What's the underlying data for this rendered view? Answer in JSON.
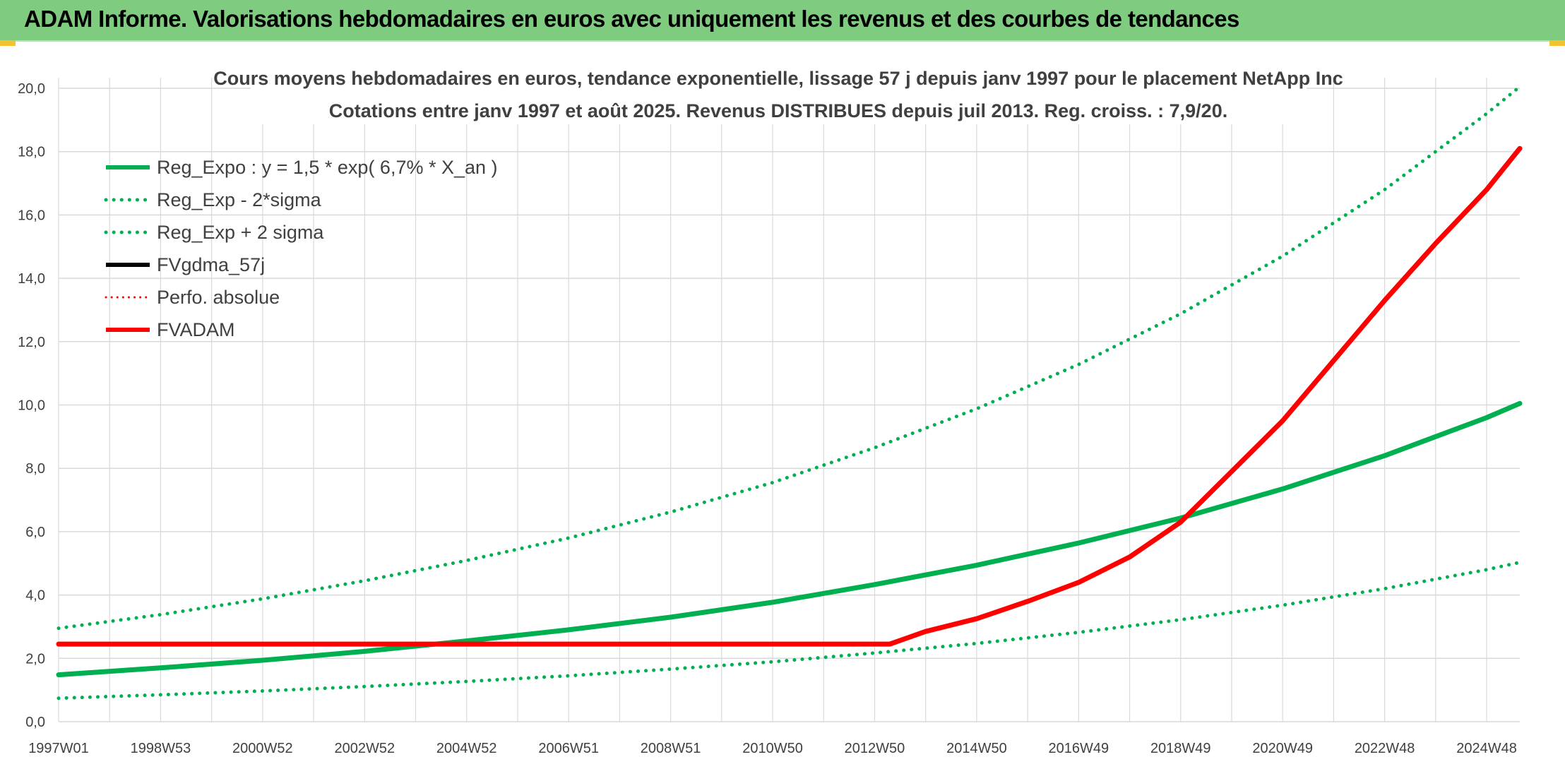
{
  "header": {
    "title": "ADAM Informe. Valorisations hebdomadaires en euros avec uniquement les revenus et des courbes de tendances"
  },
  "colors": {
    "header_bg": "#7fcb7f",
    "green": "#00b050",
    "red": "#ff0000",
    "black": "#000000",
    "grid": "#d9d9d9",
    "text": "#404040"
  },
  "chart_data": {
    "type": "line",
    "title_lines": [
      "Cours moyens hebdomadaires en euros, tendance exponentielle, lissage 57 j depuis janv 1997 pour le placement NetApp Inc",
      "Cotations entre janv 1997 et août 2025. Revenus DISTRIBUES depuis juil 2013. Reg. croiss. : 7,9/20."
    ],
    "xlabel": "",
    "ylabel": "",
    "ylim": [
      0,
      20
    ],
    "x_range_years": [
      1997.0,
      2025.65
    ],
    "y_ticks": [
      "0,0",
      "2,0",
      "4,0",
      "6,0",
      "8,0",
      "10,0",
      "12,0",
      "14,0",
      "16,0",
      "18,0",
      "20,0"
    ],
    "x_ticks": [
      {
        "label": "1997W01",
        "year": 1997.0
      },
      {
        "label": "1998W53",
        "year": 1999.0
      },
      {
        "label": "2000W52",
        "year": 2001.0
      },
      {
        "label": "2002W52",
        "year": 2003.0
      },
      {
        "label": "2004W52",
        "year": 2005.0
      },
      {
        "label": "2006W51",
        "year": 2007.0
      },
      {
        "label": "2008W51",
        "year": 2009.0
      },
      {
        "label": "2010W50",
        "year": 2011.0
      },
      {
        "label": "2012W50",
        "year": 2013.0
      },
      {
        "label": "2014W50",
        "year": 2015.0
      },
      {
        "label": "2016W49",
        "year": 2017.0
      },
      {
        "label": "2018W49",
        "year": 2019.0
      },
      {
        "label": "2020W49",
        "year": 2021.0
      },
      {
        "label": "2022W48",
        "year": 2023.0
      },
      {
        "label": "2024W48",
        "year": 2025.0
      }
    ],
    "grid": true,
    "legend_position": "top-left",
    "series": [
      {
        "name": "Reg_Expo : y = 1,5 * exp( 6,7% *  X_an )",
        "color": "#00b050",
        "style": "solid",
        "x": [
          1997.0,
          1999.0,
          2001.0,
          2003.0,
          2005.0,
          2007.0,
          2009.0,
          2011.0,
          2013.0,
          2015.0,
          2017.0,
          2019.0,
          2021.0,
          2023.0,
          2025.0,
          2025.65
        ],
        "y": [
          1.48,
          1.7,
          1.94,
          2.22,
          2.55,
          2.9,
          3.3,
          3.77,
          4.33,
          4.94,
          5.64,
          6.43,
          7.35,
          8.4,
          9.6,
          10.05
        ]
      },
      {
        "name": "Reg_Exp - 2*sigma",
        "color": "#00b050",
        "style": "dotted",
        "x": [
          1997.0,
          1999.0,
          2001.0,
          2003.0,
          2005.0,
          2007.0,
          2009.0,
          2011.0,
          2013.0,
          2015.0,
          2017.0,
          2019.0,
          2021.0,
          2023.0,
          2025.0,
          2025.65
        ],
        "y": [
          0.74,
          0.85,
          0.97,
          1.11,
          1.27,
          1.45,
          1.66,
          1.89,
          2.17,
          2.47,
          2.82,
          3.22,
          3.68,
          4.2,
          4.8,
          5.03
        ]
      },
      {
        "name": "Reg_Exp + 2 sigma",
        "color": "#00b050",
        "style": "dotted",
        "x": [
          1997.0,
          1999.0,
          2001.0,
          2003.0,
          2005.0,
          2007.0,
          2009.0,
          2011.0,
          2013.0,
          2015.0,
          2017.0,
          2019.0,
          2021.0,
          2023.0,
          2025.0,
          2025.65
        ],
        "y": [
          2.95,
          3.38,
          3.88,
          4.45,
          5.09,
          5.8,
          6.62,
          7.55,
          8.65,
          9.88,
          11.28,
          12.88,
          14.7,
          16.8,
          19.2,
          20.05
        ]
      },
      {
        "name": "FVgdma_57j",
        "color": "#000000",
        "style": "solid",
        "x": [
          1997.0,
          2013.3,
          2014.0,
          2015.0,
          2016.0,
          2017.0,
          2018.0,
          2019.0,
          2020.0,
          2021.0,
          2022.0,
          2023.0,
          2024.0,
          2025.0,
          2025.65
        ],
        "y": [
          2.45,
          2.45,
          2.85,
          3.25,
          3.8,
          4.4,
          5.2,
          6.3,
          7.9,
          9.5,
          11.4,
          13.3,
          15.1,
          16.8,
          18.1
        ]
      },
      {
        "name": "Perfo. absolue",
        "color": "#ff0000",
        "style": "dotted",
        "x": [
          1997.0,
          2013.3,
          2014.0,
          2015.0,
          2016.0,
          2017.0,
          2018.0,
          2019.0,
          2020.0,
          2021.0,
          2022.0,
          2023.0,
          2024.0,
          2025.0,
          2025.65
        ],
        "y": [
          2.45,
          2.45,
          2.85,
          3.25,
          3.8,
          4.4,
          5.2,
          6.3,
          7.9,
          9.5,
          11.4,
          13.3,
          15.1,
          16.8,
          18.1
        ]
      },
      {
        "name": "FVADAM",
        "color": "#ff0000",
        "style": "solid",
        "x": [
          1997.0,
          2013.3,
          2014.0,
          2015.0,
          2016.0,
          2017.0,
          2018.0,
          2019.0,
          2020.0,
          2021.0,
          2022.0,
          2023.0,
          2024.0,
          2025.0,
          2025.65
        ],
        "y": [
          2.45,
          2.45,
          2.85,
          3.25,
          3.8,
          4.4,
          5.2,
          6.3,
          7.9,
          9.5,
          11.4,
          13.3,
          15.1,
          16.8,
          18.1
        ]
      }
    ]
  }
}
